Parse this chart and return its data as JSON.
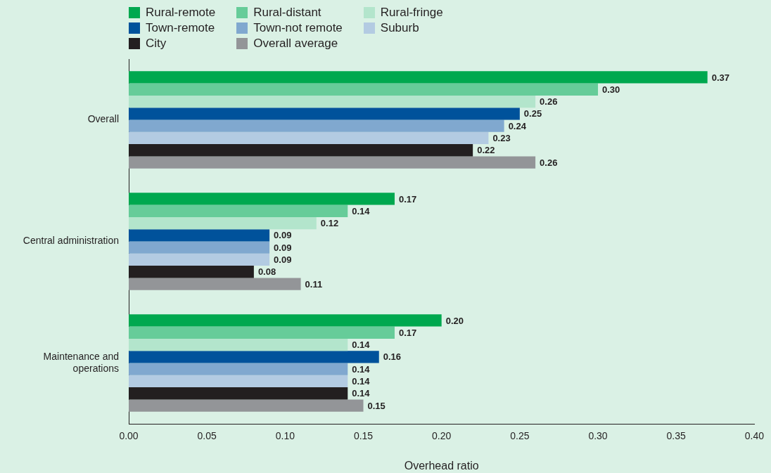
{
  "chart_data": {
    "type": "bar",
    "orientation": "horizontal",
    "categories": [
      "Overall",
      "Central administration",
      "Maintenance and operations"
    ],
    "series": [
      {
        "name": "Rural-remote",
        "color": "#00a84f",
        "values": [
          0.37,
          0.17,
          0.2
        ],
        "value_labels": [
          "0.37",
          "0.17",
          "0.20"
        ]
      },
      {
        "name": "Rural-distant",
        "color": "#66cc99",
        "values": [
          0.3,
          0.14,
          0.17
        ],
        "value_labels": [
          "0.30",
          "0.14",
          "0.17"
        ]
      },
      {
        "name": "Rural-fringe",
        "color": "#b3e5cc",
        "values": [
          0.26,
          0.12,
          0.14
        ],
        "value_labels": [
          "0.26",
          "0.12",
          "0.14"
        ]
      },
      {
        "name": "Town-remote",
        "color": "#00529b",
        "values": [
          0.25,
          0.09,
          0.16
        ],
        "value_labels": [
          "0.25",
          "0.09",
          "0.16"
        ]
      },
      {
        "name": "Town-not remote",
        "color": "#80a8cf",
        "values": [
          0.24,
          0.09,
          0.14
        ],
        "value_labels": [
          "0.24",
          "0.09",
          "0.14"
        ]
      },
      {
        "name": "Suburb",
        "color": "#b3cbe2",
        "values": [
          0.23,
          0.09,
          0.14
        ],
        "value_labels": [
          "0.23",
          "0.09",
          "0.14"
        ]
      },
      {
        "name": "City",
        "color": "#231f20",
        "values": [
          0.22,
          0.08,
          0.14
        ],
        "value_labels": [
          "0.22",
          "0.08",
          "0.14"
        ]
      },
      {
        "name": "Overall average",
        "color": "#939598",
        "values": [
          0.26,
          0.11,
          0.15
        ],
        "value_labels": [
          "0.26",
          "0.11",
          "0.15"
        ]
      }
    ],
    "xlabel": "Overhead ratio",
    "xlim": [
      0,
      0.4
    ],
    "xticks": [
      {
        "value": 0,
        "label": "0.00"
      },
      {
        "value": 0.05,
        "label": "0.05"
      },
      {
        "value": 0.1,
        "label": "0.10"
      },
      {
        "value": 0.15,
        "label": "0.15"
      },
      {
        "value": 0.2,
        "label": "0.20"
      },
      {
        "value": 0.25,
        "label": "0.25"
      },
      {
        "value": 0.3,
        "label": "0.30"
      },
      {
        "value": 0.35,
        "label": "0.35"
      },
      {
        "value": 0.4,
        "label": "0.40"
      }
    ],
    "grid": false,
    "legend": "top left"
  }
}
